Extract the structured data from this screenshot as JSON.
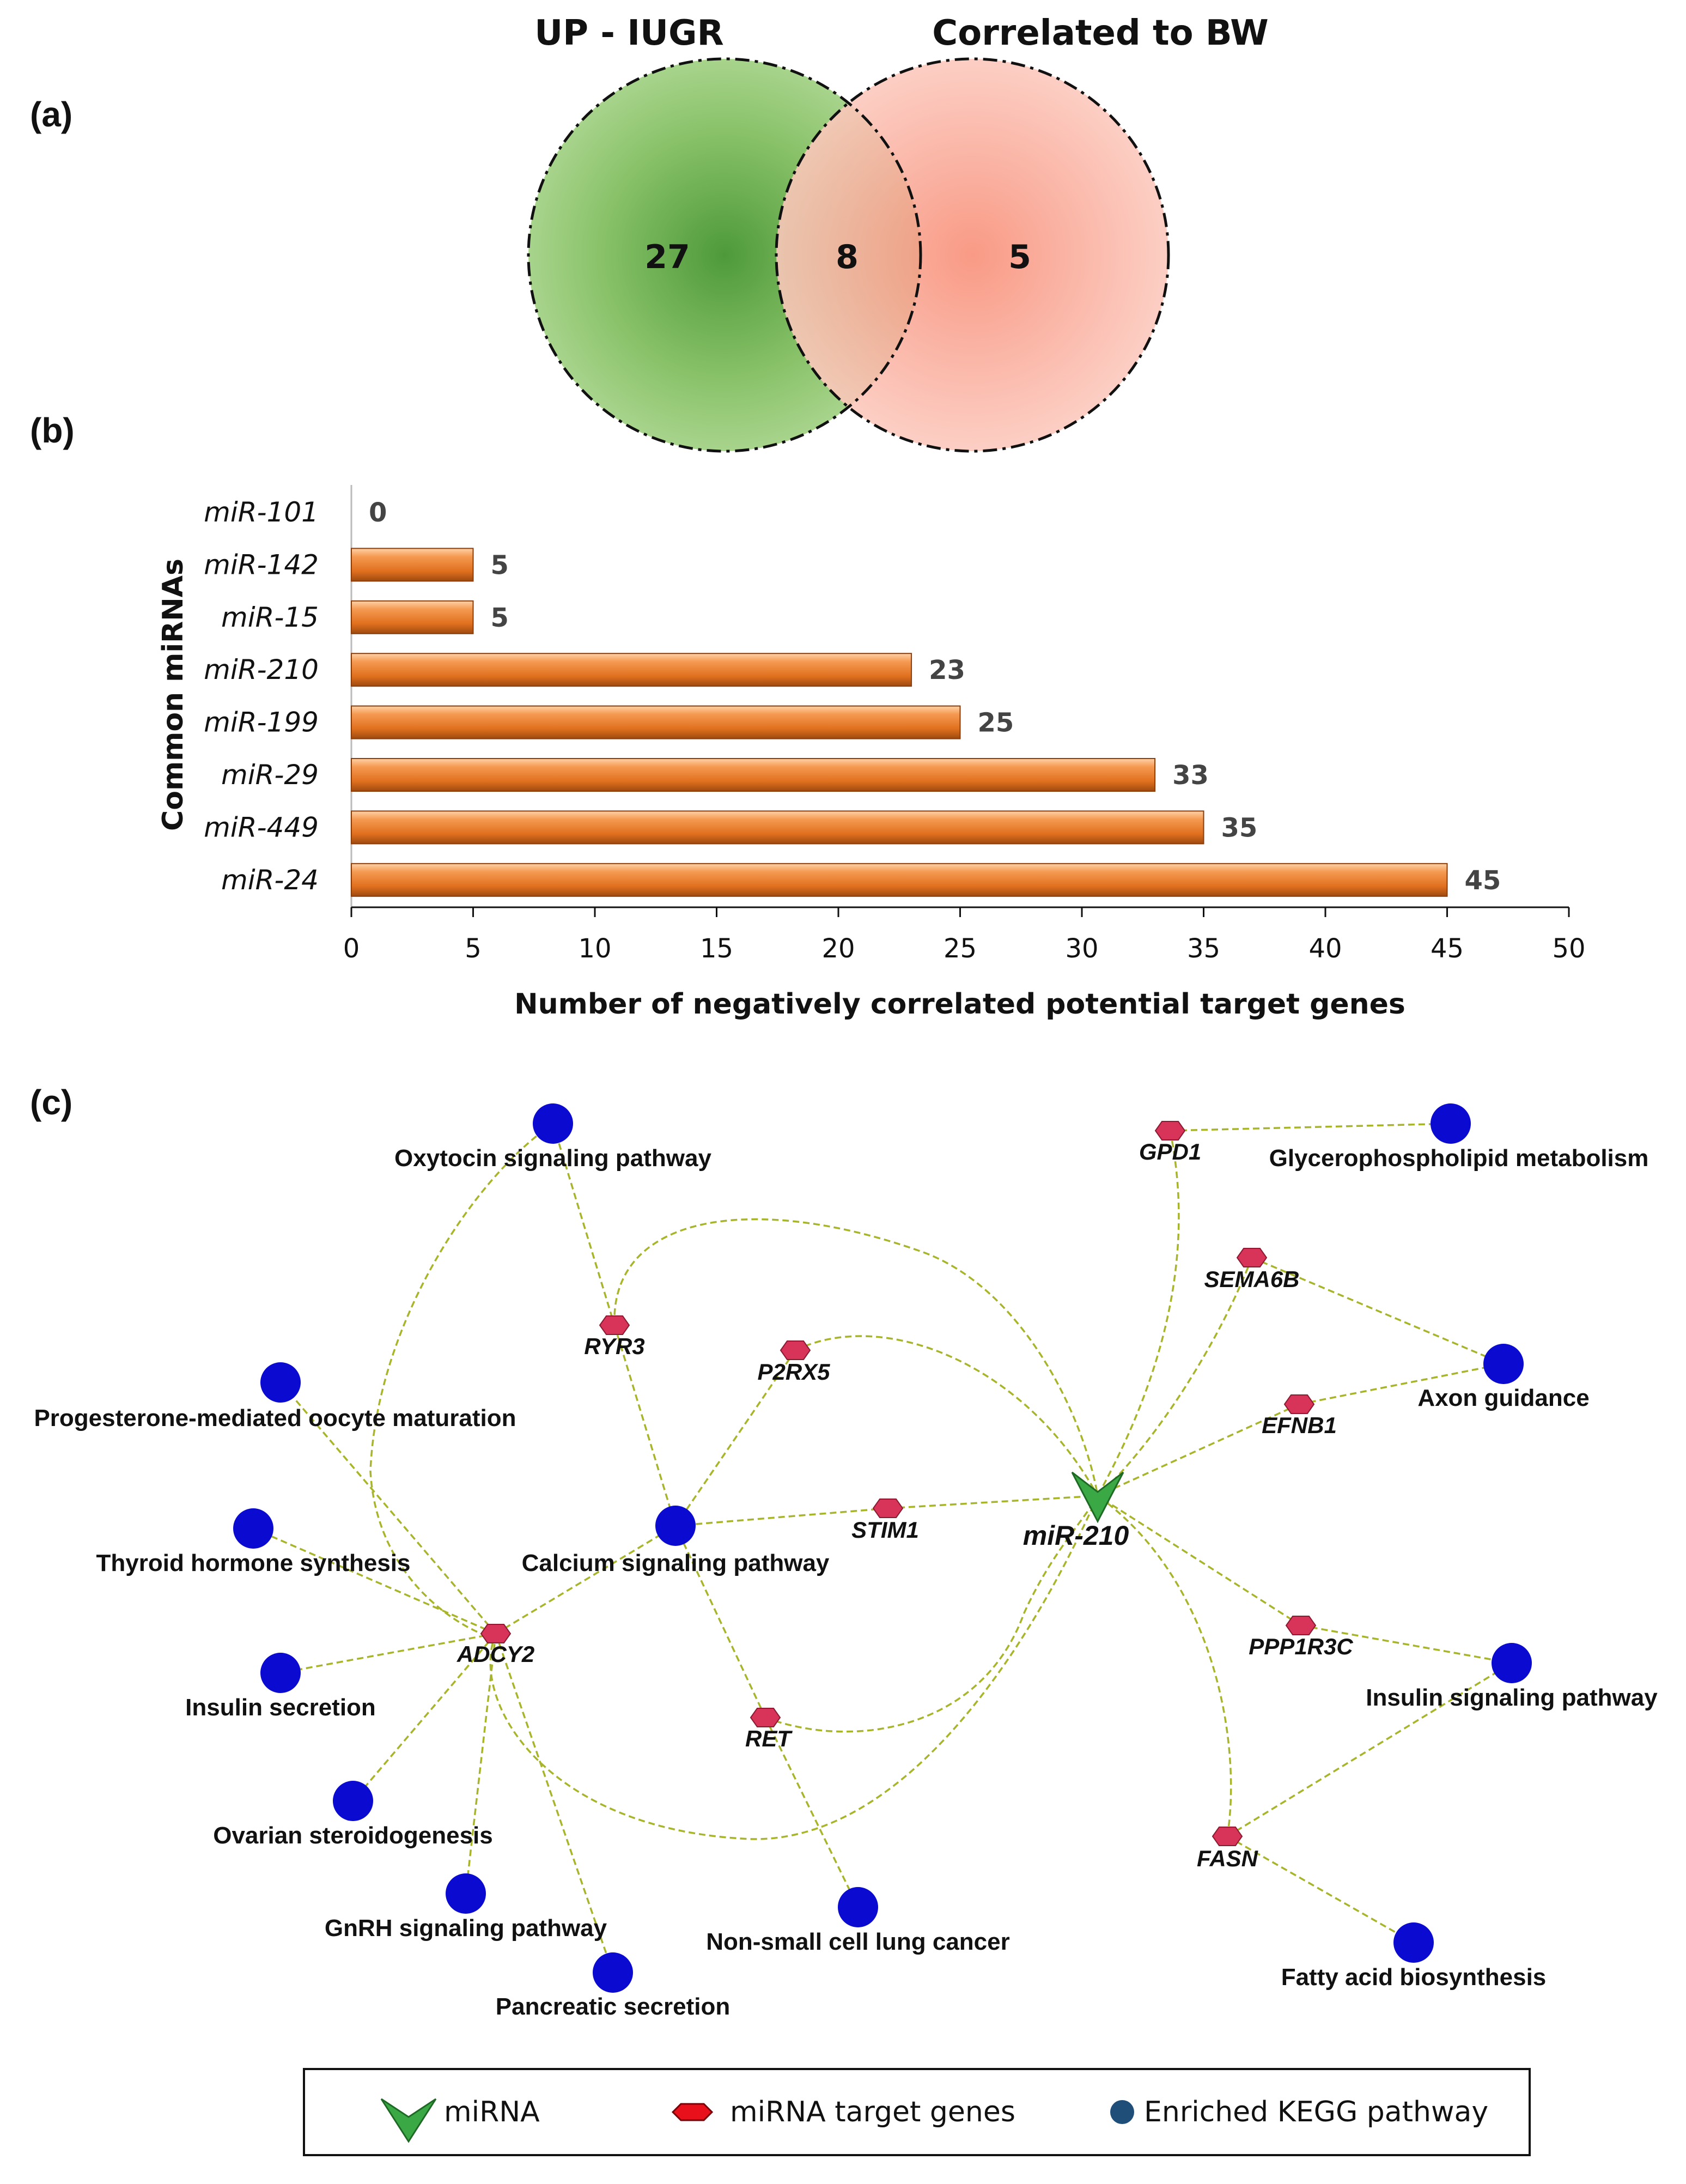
{
  "panels": {
    "a": "(a)",
    "b": "(b)",
    "c": "(c)"
  },
  "venn": {
    "sets": [
      {
        "name": "UP - IUGR",
        "only": 27,
        "color": "#5fa844"
      },
      {
        "name": "Correlated to BW",
        "only": 5,
        "color": "#f7a089"
      }
    ],
    "overlap": 8
  },
  "chart_data": {
    "type": "bar",
    "orientation": "horizontal",
    "categories": [
      "miR-101",
      "miR-142",
      "miR-15",
      "miR-210",
      "miR-199",
      "miR-29",
      "miR-449",
      "miR-24"
    ],
    "values": [
      0,
      5,
      5,
      23,
      25,
      33,
      35,
      45
    ],
    "xlabel": "Number of negatively correlated potential target genes",
    "ylabel": "Common miRNAs",
    "xlim": [
      0,
      50
    ],
    "xticks": [
      0,
      5,
      10,
      15,
      20,
      25,
      30,
      35,
      40,
      45,
      50
    ],
    "bar_color": "#e8782a"
  },
  "network": {
    "mirna": [
      "miR-210"
    ],
    "genes": [
      "GPD1",
      "SEMA6B",
      "RYR3",
      "P2RX5",
      "EFNB1",
      "STIM1",
      "ADCY2",
      "PPP1R3C",
      "RET",
      "FASN"
    ],
    "pathways": [
      "Oxytocin signaling pathway",
      "Glycerophospholipid metabolism",
      "Progesterone-mediated oocyte maturation",
      "Axon guidance",
      "Thyroid hormone synthesis",
      "Calcium signaling pathway",
      "Insulin secretion",
      "Insulin signaling pathway",
      "Ovarian steroidogenesis",
      "GnRH signaling pathway",
      "Non-small cell lung cancer",
      "Pancreatic secretion",
      "Fatty acid biosynthesis"
    ],
    "colors": {
      "mirna": "#3aa845",
      "gene": "#d8345a",
      "pathway": "#0a0ad0",
      "edge": "#a8b42a"
    }
  },
  "legend": {
    "mirna": "miRNA",
    "gene": "miRNA target genes",
    "pathway": "Enriched KEGG pathway"
  }
}
